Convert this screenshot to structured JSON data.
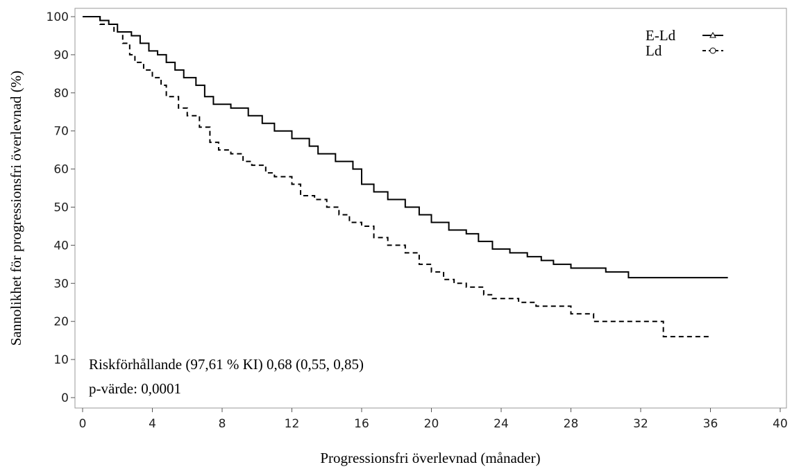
{
  "chart_data": {
    "type": "line",
    "step": true,
    "x_label": "Progressionsfri överlevnad (månader)",
    "y_label": "Sannolikhet för progressionsfri överlevnad (%)",
    "xlim": [
      0,
      40
    ],
    "ylim": [
      0,
      100
    ],
    "xticks": [
      0,
      4,
      8,
      12,
      16,
      20,
      24,
      28,
      32,
      36,
      40
    ],
    "yticks": [
      0,
      10,
      20,
      30,
      40,
      50,
      60,
      70,
      80,
      90,
      100
    ],
    "legend_position": "upper right",
    "annotations": [
      "Riskförhållande (97,61 % KI) 0,68 (0,55, 0,85)",
      "p-värde: 0,0001"
    ],
    "series": [
      {
        "name": "E-Ld",
        "color": "#000000",
        "line_style": "solid",
        "marker": "triangle",
        "x": [
          0,
          1,
          1.5,
          2,
          2.8,
          3.3,
          3.8,
          4.3,
          4.8,
          5.3,
          5.8,
          6.5,
          7,
          7.5,
          8.5,
          9.5,
          10.3,
          11,
          12,
          13,
          13.5,
          14.5,
          15.5,
          16,
          16.7,
          17.5,
          18.5,
          19.3,
          20,
          21,
          22,
          22.7,
          23.5,
          24.5,
          25.5,
          26.3,
          27,
          28,
          30,
          31.3,
          37
        ],
        "values": [
          100,
          99,
          98,
          96,
          95,
          93,
          91,
          90,
          88,
          86,
          84,
          82,
          79,
          77,
          76,
          74,
          72,
          70,
          68,
          66,
          64,
          62,
          60,
          56,
          54,
          52,
          50,
          48,
          46,
          44,
          43,
          41,
          39,
          38,
          37,
          36,
          35,
          34,
          33,
          31.5,
          31.5
        ]
      },
      {
        "name": "Ld",
        "color": "#000000",
        "line_style": "dashed",
        "marker": "circle",
        "x": [
          0,
          1,
          1.8,
          2.3,
          2.7,
          3,
          3.5,
          4,
          4.5,
          4.8,
          5.5,
          6,
          6.7,
          7.3,
          7.8,
          8.5,
          9.2,
          9.7,
          10.5,
          11,
          12,
          12.5,
          13.3,
          14,
          14.7,
          15.3,
          16,
          16.7,
          17.5,
          18.5,
          19.3,
          20,
          20.7,
          21.3,
          22,
          23,
          23.5,
          25,
          26,
          28,
          29.3,
          32.5,
          33.3,
          36
        ],
        "values": [
          100,
          98,
          96,
          93,
          90,
          88,
          86,
          84,
          82,
          79,
          76,
          74,
          71,
          67,
          65,
          64,
          62,
          61,
          59,
          58,
          56,
          53,
          52,
          50,
          48,
          46,
          45,
          42,
          40,
          38,
          35,
          33,
          31,
          30,
          29,
          27,
          26,
          25,
          24,
          22,
          20,
          20,
          16,
          16
        ]
      }
    ]
  }
}
